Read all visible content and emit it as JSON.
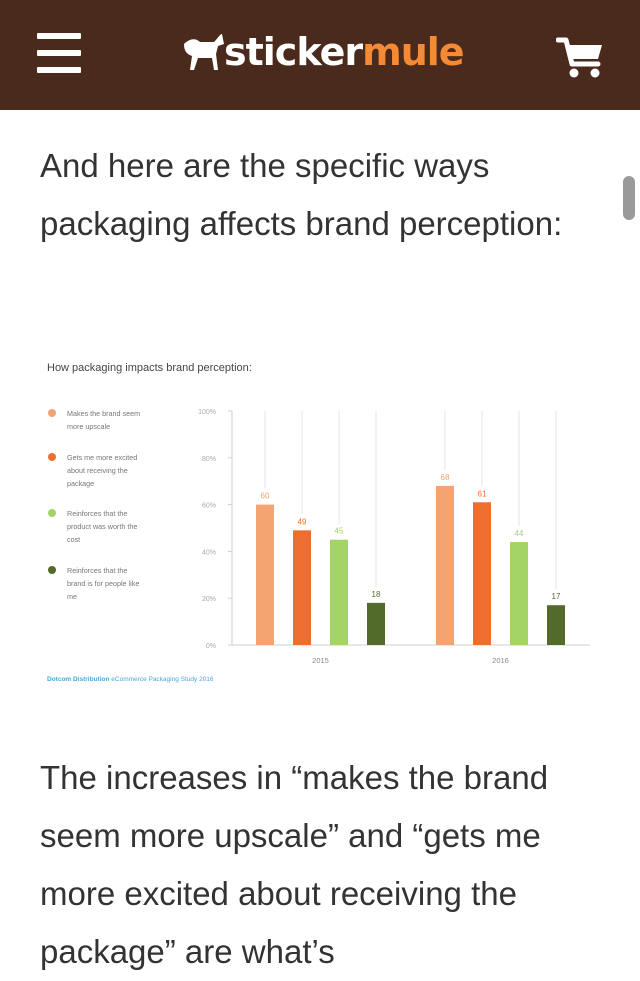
{
  "header": {
    "logo_part1": "sticker",
    "logo_part2": "mule",
    "menu_icon": "hamburger-menu-icon",
    "cart_icon": "shopping-cart-icon",
    "logo_icon": "mule-logo-icon",
    "bg_color": "#4a2a1c",
    "accent_color": "#f58a36"
  },
  "article": {
    "paragraph1": "And here are the specific ways packaging affects brand perception:",
    "paragraph2": "The increases in “makes the brand seem more upscale” and “gets me more excited about receiving the package” are what’s"
  },
  "chart_data": {
    "type": "bar",
    "title": "How packaging impacts brand perception:",
    "categories": [
      "2015",
      "2016"
    ],
    "series": [
      {
        "name": "Makes the brand seem more upscale",
        "values": [
          60,
          68
        ],
        "color": "#f3a471"
      },
      {
        "name": "Gets me more excited about receiving the package",
        "values": [
          49,
          61
        ],
        "color": "#ee6e2f"
      },
      {
        "name": "Reinforces that the product was worth the cost",
        "values": [
          45,
          44
        ],
        "color": "#a3d465"
      },
      {
        "name": "Reinforces that the brand is for people like me",
        "values": [
          18,
          17
        ],
        "color": "#526a2a"
      }
    ],
    "yticks": [
      "100%",
      "80%",
      "60%",
      "40%",
      "20%",
      "0%"
    ],
    "ylim": [
      0,
      100
    ],
    "legend_position": "left",
    "source_bold": "Dotcom Distribution",
    "source_rest": "eCommerce Packaging Study 2016"
  }
}
